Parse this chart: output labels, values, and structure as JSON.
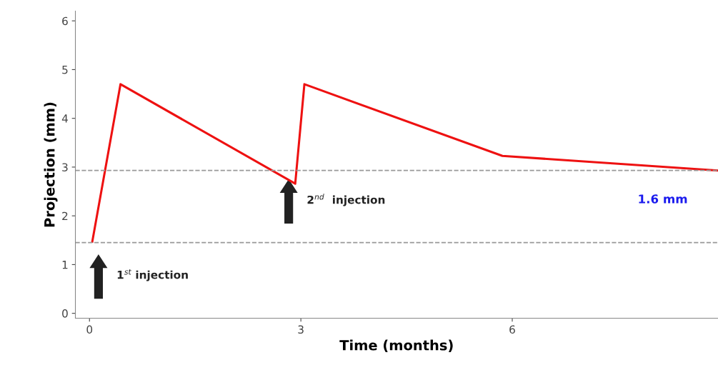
{
  "chart_data": {
    "type": "line",
    "xlabel": "Time (months)",
    "ylabel": "Projection (mm)",
    "x": [
      0.04,
      0.44,
      2.92,
      3.05,
      5.86,
      8.92
    ],
    "series": [
      {
        "color": "#ee1111",
        "values": [
          1.47,
          4.7,
          2.66,
          4.7,
          3.23,
          2.93
        ]
      }
    ],
    "xlim": [
      -0.2,
      8.92
    ],
    "xticks": [
      0,
      3,
      6
    ],
    "ylim": [
      -0.1,
      6.2
    ],
    "yticks": [
      0,
      1,
      2,
      3,
      4,
      5,
      6
    ],
    "grid": false,
    "legend": false,
    "marker": "none",
    "line_style": "solid",
    "ref_lines": [
      {
        "axis": "y",
        "value": 2.93,
        "color": "#999999",
        "line_style": "dashed"
      },
      {
        "axis": "y",
        "value": 1.45,
        "color": "#999999",
        "line_style": "dashed"
      }
    ],
    "annotations": [
      "1$^{st}$ injection",
      "2$^{nd}$  injection",
      "1.6 mm"
    ]
  }
}
